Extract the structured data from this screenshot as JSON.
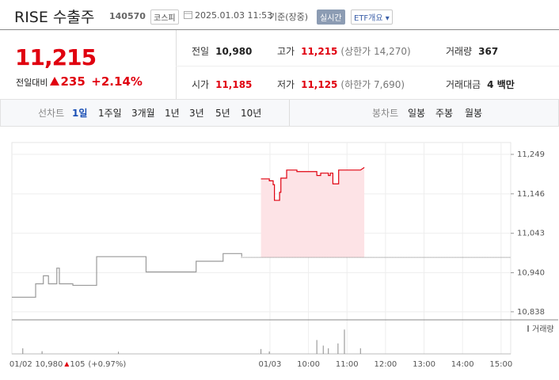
{
  "header": {
    "name": "RISE 수출주",
    "code": "140570",
    "market": "코스피",
    "datetime": "2025.01.03 11:53",
    "basis": "기준(장중)",
    "realtime": "실시간",
    "etf": "ETF개요"
  },
  "price": {
    "value": "11,215",
    "change_label": "전일대비",
    "change": "235",
    "change_pct": "+2.14%"
  },
  "summary": [
    {
      "label": "전일",
      "value": "10,980",
      "color": "#222"
    },
    {
      "label": "고가",
      "value": "11,215",
      "note": "(상한가 14,270)",
      "color": "#e0000f"
    },
    {
      "label": "거래량",
      "value": "367",
      "color": "#222"
    },
    {
      "label": "시가",
      "value": "11,185",
      "color": "#e0000f"
    },
    {
      "label": "저가",
      "value": "11,125",
      "note": "(하한가 7,690)",
      "color": "#e0000f"
    },
    {
      "label": "거래대금",
      "value": "4 백만",
      "color": "#222"
    }
  ],
  "tabs": {
    "line_label": "선차트",
    "line": [
      "1일",
      "1주일",
      "3개월",
      "1년",
      "3년",
      "5년",
      "10년"
    ],
    "active": 0,
    "candle_label": "봉차트",
    "candle": [
      "일봉",
      "주봉",
      "월봉"
    ]
  },
  "chart": {
    "type": "line",
    "ylim": [
      10817,
      11280
    ],
    "yticks": [
      {
        "value": 11249,
        "label": "11,249"
      },
      {
        "value": 11146,
        "label": "11,146"
      },
      {
        "value": 11043,
        "label": "11,043"
      },
      {
        "value": 10940,
        "label": "10,940"
      },
      {
        "value": 10838,
        "label": "10,838"
      }
    ],
    "xlim": [
      -402,
      375
    ],
    "xticks": [
      {
        "value": -388,
        "label": "01/02"
      },
      {
        "value": 0,
        "label": "01/03"
      },
      {
        "value": 60,
        "label": "10:00"
      },
      {
        "value": 120,
        "label": "11:00"
      },
      {
        "value": 180,
        "label": "12:00"
      },
      {
        "value": 240,
        "label": "13:00"
      },
      {
        "value": 300,
        "label": "14:00"
      },
      {
        "value": 360,
        "label": "15:00"
      }
    ],
    "baseline": 10980,
    "series": [
      {
        "color": "#9a9a9a",
        "x": [
          -402,
          -365,
          -365,
          -353,
          -353,
          -345,
          -345,
          -332,
          -332,
          -328,
          -328,
          -307,
          -307,
          -270,
          -270,
          -193,
          -193,
          -115,
          -115,
          -73,
          -73,
          -44,
          -44
        ],
        "values": [
          10876,
          10876,
          10911,
          10911,
          10932,
          10932,
          10911,
          10911,
          10952,
          10952,
          10911,
          10911,
          10907,
          10907,
          10982,
          10982,
          10942,
          10942,
          10970,
          10970,
          10990,
          10990,
          10982
        ]
      },
      {
        "color": "#e0000f",
        "fill": "#fde3e6",
        "x": [
          -14,
          -1,
          -1,
          5,
          5,
          7,
          7,
          15,
          15,
          17,
          17,
          26,
          26,
          42,
          42,
          73,
          73,
          79,
          79,
          91,
          91,
          94,
          94,
          98,
          98,
          107,
          107,
          141,
          147
        ],
        "values": [
          11185,
          11185,
          11180,
          11180,
          11170,
          11170,
          11129,
          11129,
          11150,
          11150,
          11187,
          11187,
          11208,
          11208,
          11204,
          11204,
          11194,
          11194,
          11200,
          11200,
          11194,
          11194,
          11200,
          11200,
          11172,
          11172,
          11208,
          11208,
          11215
        ]
      }
    ],
    "volume": {
      "label": "거래량",
      "color": "#8a8a8a",
      "vlim": [
        0,
        140
      ],
      "x": [
        -385,
        -355,
        -236,
        -14,
        -1,
        73,
        83,
        91,
        106,
        116,
        141
      ],
      "values": [
        23,
        11,
        9,
        20,
        10,
        57,
        34,
        23,
        43,
        100,
        23
      ]
    },
    "prev": {
      "price": "10,980",
      "change": "105",
      "pct": "(+0.97%)"
    }
  }
}
